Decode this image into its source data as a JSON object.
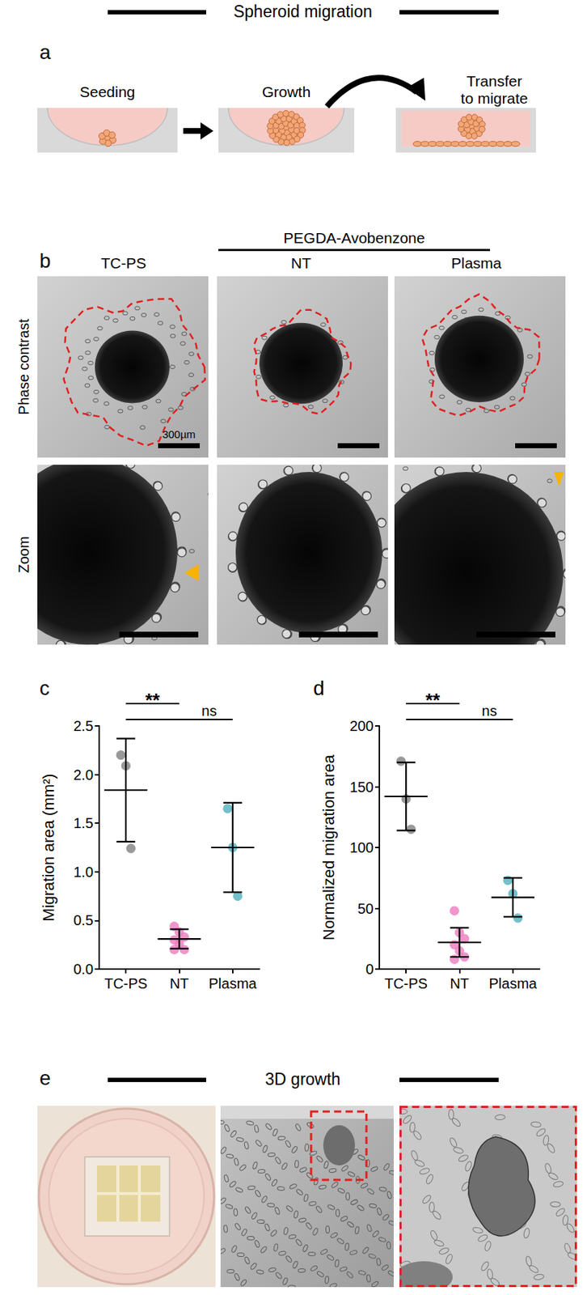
{
  "figure": {
    "title": "Spheroid migration",
    "panel_a": {
      "label": "a",
      "steps": [
        {
          "lines": [
            "Seeding"
          ]
        },
        {
          "lines": [
            "Growth"
          ]
        },
        {
          "lines": [
            "Transfer",
            "to migrate"
          ]
        }
      ]
    },
    "panel_b": {
      "label": "b",
      "group": "PEGDA-Avobenzone",
      "columns": [
        "TC-PS",
        "NT",
        "Plasma"
      ],
      "rows": [
        "Phase contrast",
        "Zoom"
      ],
      "scale_bar": "300µm"
    },
    "chart_panels": [
      "c",
      "d"
    ],
    "panel_e": {
      "label": "e",
      "title": "3D growth"
    }
  },
  "chart_data": [
    {
      "type": "scatter",
      "categories": [
        "TC-PS",
        "NT",
        "Plasma"
      ],
      "ylabel": "Migration area (mm²)",
      "colors": [
        "#808080",
        "#ec7cbf",
        "#4fb0bd"
      ],
      "points": [
        [
          2.2,
          2.09,
          1.24
        ],
        [
          0.44,
          0.38,
          0.33,
          0.3,
          0.26,
          0.2,
          0.2
        ],
        [
          1.65,
          1.25,
          0.75
        ]
      ],
      "means": [
        1.84,
        0.31,
        1.25
      ],
      "sd": [
        0.53,
        0.1,
        0.46
      ],
      "ylim": [
        0,
        2.5
      ],
      "yticks": [
        {
          "value": 0,
          "label": "0.0"
        },
        0.5,
        {
          "value": 1,
          "label": "1.0"
        },
        1.5,
        {
          "value": 2,
          "label": "2.0"
        },
        2.5
      ],
      "grid": false,
      "annotations": [
        {
          "text": "**",
          "from": "TC-PS",
          "to": "NT"
        },
        {
          "text": "ns",
          "from": "TC-PS",
          "to": "Plasma"
        }
      ]
    },
    {
      "type": "scatter",
      "categories": [
        "TC-PS",
        "NT",
        "Plasma"
      ],
      "ylabel": "Normalized migration area",
      "colors": [
        "#808080",
        "#ec7cbf",
        "#4fb0bd"
      ],
      "points": [
        [
          171,
          140,
          115
        ],
        [
          48,
          30,
          25,
          20,
          15,
          10,
          8
        ],
        [
          73,
          62,
          42
        ]
      ],
      "means": [
        142,
        22,
        59
      ],
      "sd": [
        28,
        12,
        16
      ],
      "ylim": [
        0,
        200
      ],
      "yticks": [
        0,
        50,
        100,
        150,
        200
      ],
      "grid": false,
      "annotations": [
        {
          "text": "**",
          "from": "TC-PS",
          "to": "NT"
        },
        {
          "text": "ns",
          "from": "TC-PS",
          "to": "Plasma"
        }
      ]
    }
  ]
}
